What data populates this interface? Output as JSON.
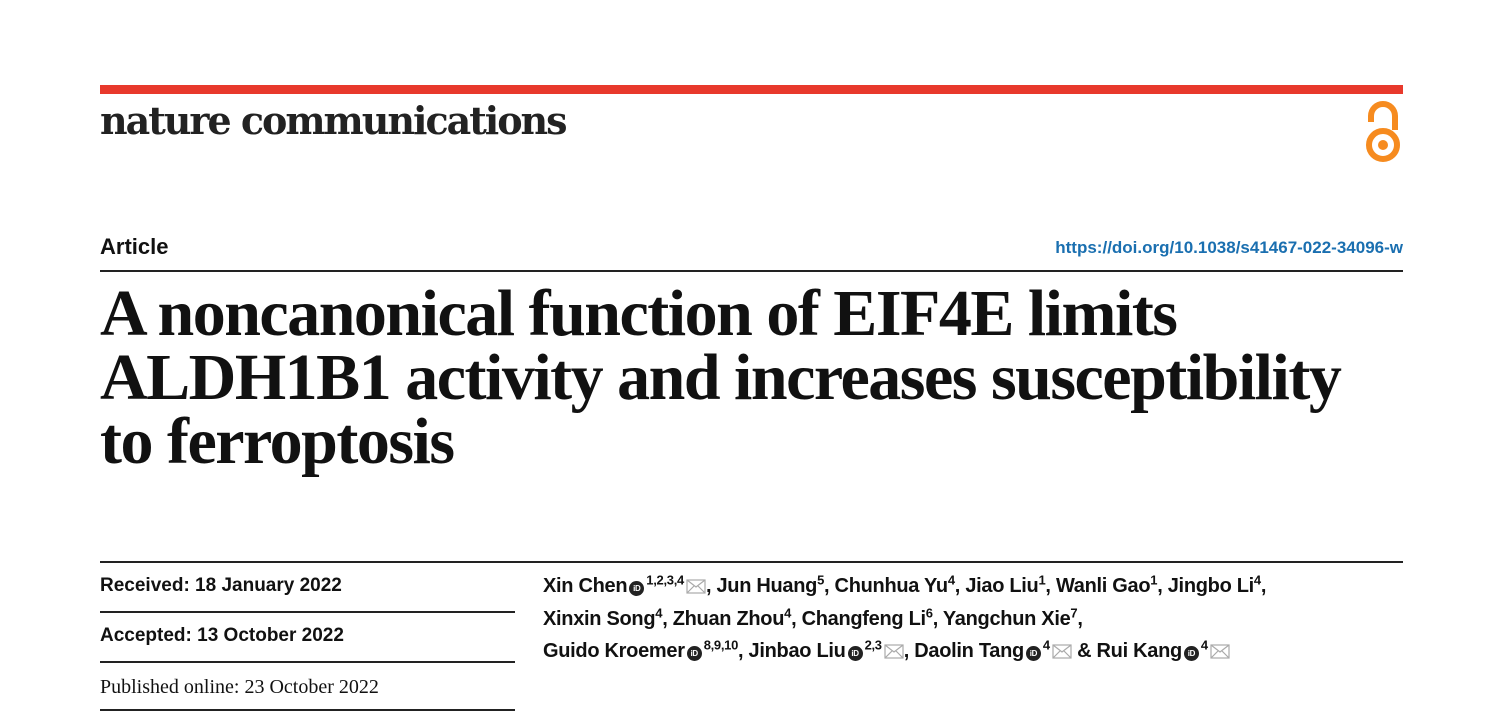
{
  "journal": {
    "name": "nature communications",
    "brand_color": "#e8392c",
    "open_access_icon": "open-access-lock-icon",
    "open_access_color": "#f68b1f"
  },
  "article_type": "Article",
  "doi": "https://doi.org/10.1038/s41467-022-34096-w",
  "title_lines": [
    "A noncanonical function of EIF4E limits",
    "ALDH1B1 activity and increases susceptibility",
    "to ferroptosis"
  ],
  "dates": {
    "received": "Received: 18 January 2022",
    "accepted": "Accepted: 13 October 2022",
    "published": "Published online: 23 October 2022"
  },
  "authors": [
    {
      "name": "Xin Chen",
      "orcid": true,
      "sup": "1,2,3,4",
      "email": true,
      "sep": ", "
    },
    {
      "name": "Jun Huang",
      "sup": "5",
      "sep": ", "
    },
    {
      "name": "Chunhua Yu",
      "sup": "4",
      "sep": ", "
    },
    {
      "name": "Jiao Liu",
      "sup": "1",
      "sep": ", "
    },
    {
      "name": "Wanli Gao",
      "sup": "1",
      "sep": ", "
    },
    {
      "name": "Jingbo Li",
      "sup": "4",
      "sep": ",",
      "br": true
    },
    {
      "name": "Xinxin Song",
      "sup": "4",
      "sep": ", "
    },
    {
      "name": "Zhuan Zhou",
      "sup": "4",
      "sep": ", "
    },
    {
      "name": "Changfeng Li",
      "sup": "6",
      "sep": ", "
    },
    {
      "name": "Yangchun Xie",
      "sup": "7",
      "sep": ",",
      "br": true
    },
    {
      "name": "Guido Kroemer",
      "orcid": true,
      "sup": "8,9,10",
      "sep": ", "
    },
    {
      "name": "Jinbao Liu",
      "orcid": true,
      "sup": "2,3",
      "email": true,
      "sep": ", "
    },
    {
      "name": "Daolin Tang",
      "orcid": true,
      "sup": "4",
      "email": true,
      "sep": " & "
    },
    {
      "name": "Rui Kang",
      "orcid": true,
      "sup": "4",
      "email": true,
      "sep": ""
    }
  ]
}
